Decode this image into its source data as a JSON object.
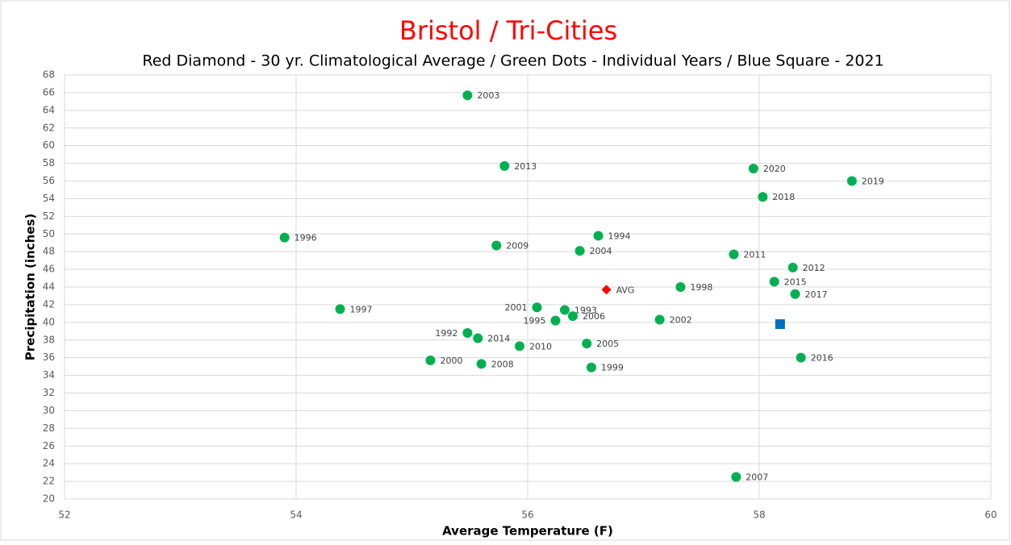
{
  "chart_data": {
    "type": "scatter",
    "title": "Bristol / Tri-Cities",
    "subtitle": "Red Diamond - 30 yr. Climatological Average / Green Dots - Individual Years / Blue Square -  2021",
    "x_label": "Average Temperature  (F)",
    "y_label": "Precipitation  (inches)",
    "xlim": [
      52,
      60
    ],
    "xticks": [
      52,
      54,
      56,
      58,
      60
    ],
    "ylim": [
      20,
      68
    ],
    "yticks": [
      20,
      22,
      24,
      26,
      28,
      30,
      32,
      34,
      36,
      38,
      40,
      42,
      44,
      46,
      48,
      50,
      52,
      54,
      56,
      58,
      60,
      62,
      64,
      66,
      68
    ],
    "grid": true,
    "series": [
      {
        "color": "#00b050",
        "marker": "circle",
        "labels": [
          "2003",
          "2013",
          "2020",
          "2019",
          "2018",
          "1996",
          "1994",
          "2009",
          "2004",
          "2011",
          "2012",
          "2015",
          "1998",
          "2017",
          "1997",
          "2001",
          "1993",
          "2006",
          "1995",
          "2002",
          "1992",
          "2014",
          "2010",
          "2005",
          "2016",
          "2000",
          "2008",
          "1999",
          "2007"
        ],
        "x": [
          55.48,
          55.8,
          57.95,
          58.8,
          58.03,
          53.9,
          56.61,
          55.73,
          56.45,
          57.78,
          58.29,
          58.13,
          57.32,
          58.31,
          54.38,
          56.08,
          56.32,
          56.39,
          56.24,
          57.14,
          55.48,
          55.57,
          55.93,
          56.51,
          58.36,
          55.16,
          55.6,
          56.55,
          57.8
        ],
        "values": [
          65.7,
          57.7,
          57.4,
          56.0,
          54.2,
          49.6,
          49.8,
          48.7,
          48.1,
          47.7,
          46.2,
          44.6,
          44.0,
          43.2,
          41.5,
          41.7,
          41.4,
          40.7,
          40.2,
          40.3,
          38.8,
          38.2,
          37.3,
          37.6,
          36.0,
          35.7,
          35.3,
          34.9,
          22.5
        ]
      },
      {
        "color": "#ff0000",
        "marker": "diamond",
        "labels": [
          "AVG"
        ],
        "x": [
          56.68
        ],
        "values": [
          43.7
        ]
      },
      {
        "color": "#0070c0",
        "marker": "square",
        "x": [
          58.18
        ],
        "values": [
          39.8
        ]
      }
    ]
  }
}
